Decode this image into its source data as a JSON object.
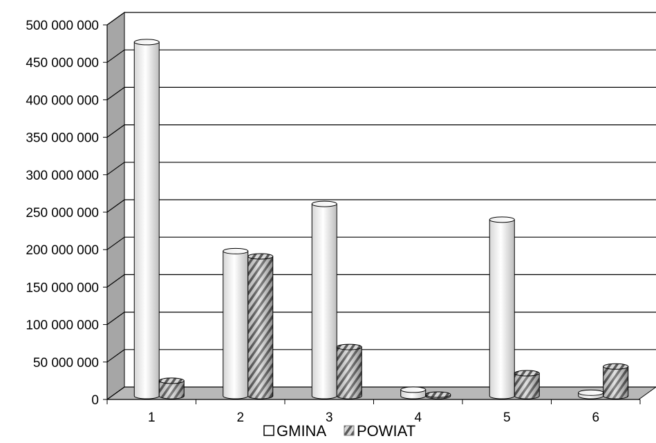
{
  "chart_data": {
    "type": "bar",
    "categories": [
      "1",
      "2",
      "3",
      "4",
      "5",
      "6"
    ],
    "series": [
      {
        "name": "GMINA",
        "values": [
          477000000,
          198000000,
          261000000,
          13000000,
          240000000,
          9000000
        ]
      },
      {
        "name": "POWIAT",
        "values": [
          25000000,
          191000000,
          70000000,
          2000000,
          35000000,
          44000000
        ]
      }
    ],
    "y_ticks": [
      "0",
      "50 000 000",
      "100 000 000",
      "150 000 000",
      "200 000 000",
      "250 000 000",
      "300 000 000",
      "350 000 000",
      "400 000 000",
      "450 000 000",
      "500 000 000"
    ],
    "ylim": [
      0,
      500000000
    ],
    "title": "",
    "xlabel": "",
    "ylabel": "",
    "grid": true,
    "legend_position": "bottom",
    "colors": {
      "gmina": "#ffffff",
      "powiat_light": "#e0e0e0",
      "powiat_dark": "#505050",
      "wall": "#a6a6a6",
      "floor": "#b8b8b8"
    }
  }
}
